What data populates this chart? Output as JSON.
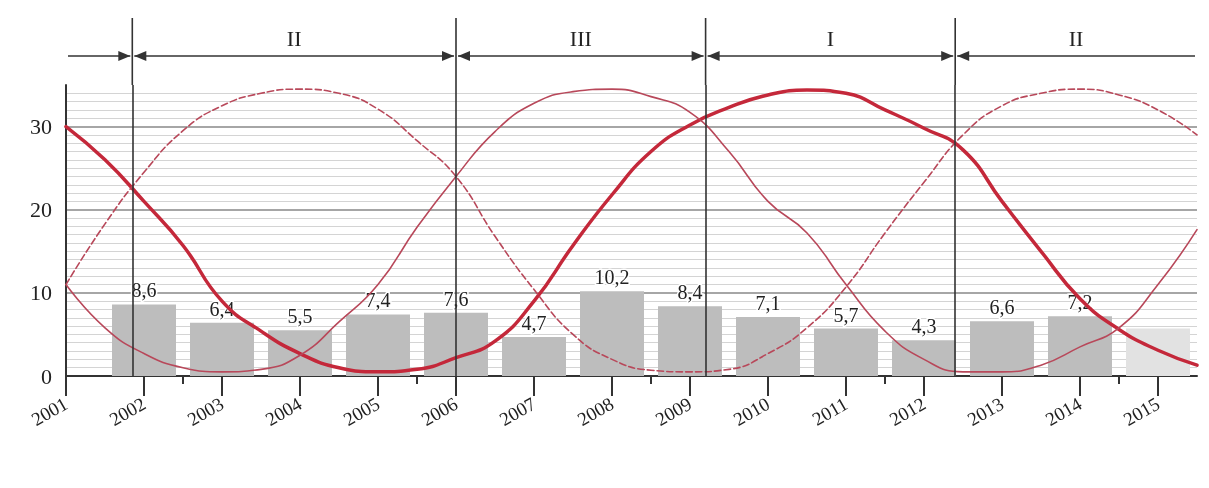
{
  "chart_data": {
    "type": "bar",
    "x": [
      2002,
      2003,
      2004,
      2005,
      2006,
      2007,
      2008,
      2009,
      2010,
      2011,
      2012,
      2013,
      2014,
      2015
    ],
    "xlim": [
      2001,
      2015.5
    ],
    "xticks": [
      2001,
      2002,
      2003,
      2004,
      2005,
      2006,
      2007,
      2008,
      2009,
      2010,
      2011,
      2012,
      2013,
      2014,
      2015
    ],
    "ylim": [
      0,
      35
    ],
    "yticks": [
      0,
      10,
      20,
      30
    ],
    "grid": "y",
    "marker": "none",
    "series": [
      {
        "values": [
          8.6,
          6.4,
          5.5,
          7.4,
          7.6,
          4.7,
          10.2,
          8.4,
          7.1,
          5.7,
          4.3,
          6.6,
          7.2,
          5.7
        ],
        "colors": [
          "#bdbdbd",
          "#bdbdbd",
          "#bdbdbd",
          "#bdbdbd",
          "#bdbdbd",
          "#bdbdbd",
          "#bdbdbd",
          "#bdbdbd",
          "#bdbdbd",
          "#bdbdbd",
          "#bdbdbd",
          "#bdbdbd",
          "#bdbdbd",
          "#e2e2e2"
        ],
        "value_labels": [
          "8,6",
          "6,4",
          "5,5",
          "7,4",
          "7,6",
          "4,7",
          "10,2",
          "8,4",
          "7,1",
          "5,7",
          "4,3",
          "6,6",
          "7,2",
          null
        ]
      },
      {
        "type": "line",
        "color": "#c4283a",
        "line_style": "solid",
        "x": [
          2001,
          2001.5,
          2002,
          2002.5,
          2003,
          2003.5,
          2004,
          2004.5,
          2005,
          2005.5,
          2006,
          2006.5,
          2007,
          2007.5,
          2008,
          2008.5,
          2009,
          2009.5,
          2010,
          2010.5,
          2011,
          2011.5,
          2012,
          2012.5,
          2013,
          2013.5,
          2014,
          2014.5,
          2015,
          2015.5
        ],
        "values": [
          30,
          26,
          21,
          15.7,
          9,
          5.4,
          2.7,
          1,
          0.5,
          0.8,
          2.2,
          4.2,
          9,
          15.7,
          21.8,
          27,
          30.2,
          32.3,
          33.8,
          34.4,
          34,
          32,
          29.8,
          27.2,
          21,
          15,
          9.3,
          5.6,
          3.1,
          1.3
        ]
      },
      {
        "type": "line",
        "color": "#b8485a",
        "line_style": "solid",
        "x": [
          2001,
          2001.5,
          2002,
          2002.5,
          2003,
          2003.5,
          2004,
          2004.5,
          2005,
          2005.5,
          2006,
          2006.5,
          2007,
          2007.5,
          2008,
          2008.5,
          2009,
          2009.5,
          2010,
          2010.5,
          2011,
          2011.5,
          2012,
          2012.5,
          2013,
          2013.5,
          2014,
          2014.5,
          2015,
          2015.5
        ],
        "values": [
          11,
          5.8,
          2.7,
          1,
          0.5,
          0.8,
          2.5,
          6.5,
          11,
          17.9,
          24,
          29.4,
          32.8,
          34.2,
          34.5,
          33.6,
          31.7,
          27,
          21,
          17.2,
          11,
          5.4,
          2,
          0.5,
          0.5,
          1.3,
          3.5,
          5.8,
          11,
          17.6
        ]
      },
      {
        "type": "line",
        "color": "#b8485a",
        "line_style": "dashed",
        "x": [
          2001,
          2001.5,
          2002,
          2002.5,
          2003,
          2003.5,
          2004,
          2004.5,
          2005,
          2005.5,
          2006,
          2006.5,
          2007,
          2007.5,
          2008,
          2008.5,
          2009,
          2009.5,
          2010,
          2010.5,
          2011,
          2011.5,
          2012,
          2012.5,
          2013,
          2013.5,
          2014,
          2014.5,
          2015,
          2015.5
        ],
        "values": [
          11,
          18.3,
          24.5,
          29.5,
          32.5,
          34,
          34.5,
          34,
          32.1,
          28.3,
          24,
          16.8,
          10.4,
          5,
          2,
          0.7,
          0.5,
          0.8,
          2.7,
          5.8,
          10.7,
          17.2,
          23.3,
          29,
          32.5,
          34,
          34.5,
          33.8,
          32,
          29
        ]
      }
    ],
    "ref_lines": [
      {
        "axis": "x",
        "value": 2001.85,
        "color": "#333333"
      },
      {
        "axis": "x",
        "value": 2006,
        "color": "#333333"
      },
      {
        "axis": "x",
        "value": 2009.2,
        "color": "#333333"
      },
      {
        "axis": "x",
        "value": 2012.4,
        "color": "#333333"
      }
    ],
    "annotations": [
      "II",
      "III",
      "I",
      "II"
    ]
  }
}
